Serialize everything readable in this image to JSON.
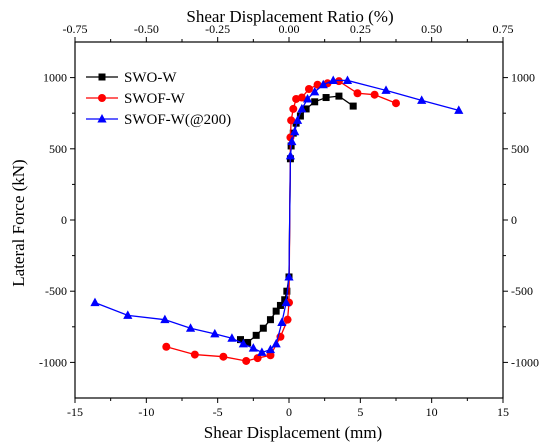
{
  "chart_data": {
    "type": "line",
    "xlabel": "Shear Displacement (mm)",
    "ylabel": "Lateral Force (kN)",
    "top_xlabel": "Shear Displacement Ratio (%)",
    "xlim": [
      -15,
      15
    ],
    "ylim": [
      -1250,
      1250
    ],
    "xticks": [
      -15,
      -10,
      -5,
      0,
      5,
      10,
      15
    ],
    "yticks": [
      -1000,
      -500,
      0,
      500,
      1000
    ],
    "top_xlim": [
      -0.75,
      0.75
    ],
    "top_xticks": [
      "-0.75",
      "-0.50",
      "-0.25",
      "0.00",
      "0.25",
      "0.50",
      "0.75"
    ],
    "legend_position": "top-left",
    "series": [
      {
        "name": "SWO-W",
        "color": "#000000",
        "marker": "square",
        "x": [
          -3.4,
          -2.9,
          -2.3,
          -1.8,
          -1.3,
          -0.9,
          -0.6,
          -0.3,
          -0.15,
          0,
          0.1,
          0.15,
          0.3,
          0.5,
          0.8,
          1.2,
          1.8,
          2.6,
          3.5,
          4.5
        ],
        "y": [
          -840,
          -860,
          -810,
          -760,
          -700,
          -640,
          -600,
          -560,
          -500,
          -400,
          430,
          520,
          610,
          680,
          730,
          780,
          830,
          860,
          870,
          800
        ]
      },
      {
        "name": "SWOF-W",
        "color": "#ff0000",
        "marker": "circle",
        "x": [
          -8.6,
          -6.6,
          -4.6,
          -3.0,
          -2.2,
          -1.3,
          -0.6,
          -0.1,
          0,
          0.1,
          0.15,
          0.3,
          0.5,
          0.9,
          1.4,
          2.0,
          2.7,
          3.5,
          4.8,
          6.0,
          7.5
        ],
        "y": [
          -890,
          -945,
          -960,
          -990,
          -970,
          -950,
          -820,
          -700,
          -580,
          580,
          700,
          780,
          850,
          860,
          920,
          950,
          960,
          975,
          890,
          880,
          820
        ]
      },
      {
        "name": "SWOF-W(@200)",
        "color": "#0000ff",
        "marker": "triangle",
        "x": [
          -13.6,
          -11.3,
          -8.7,
          -6.9,
          -5.2,
          -4.0,
          -3.2,
          -2.5,
          -1.9,
          -1.3,
          -0.9,
          -0.5,
          -0.2,
          0,
          0.1,
          0.2,
          0.4,
          0.6,
          0.9,
          1.3,
          1.8,
          2.4,
          3.1,
          4.1,
          6.8,
          9.3,
          11.9
        ],
        "y": [
          -580,
          -670,
          -700,
          -760,
          -800,
          -830,
          -870,
          -900,
          -930,
          -910,
          -870,
          -720,
          -580,
          -400,
          450,
          550,
          620,
          700,
          780,
          850,
          900,
          950,
          980,
          980,
          910,
          840,
          770
        ]
      }
    ]
  }
}
